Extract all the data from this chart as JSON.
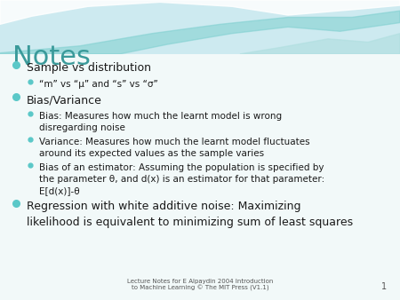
{
  "title": "Notes",
  "title_color": "#3a9a9a",
  "title_fontsize": 22,
  "background_color": "#f2f9f9",
  "footer_text": "Lecture Notes for E Alpaydin 2004 Introduction\nto Machine Learning © The MIT Press (V1.1)",
  "footer_page": "1",
  "bullet_color": "#5bc8c8",
  "text_color": "#1a1a1a",
  "items": [
    {
      "level": 1,
      "text": "Sample vs distribution"
    },
    {
      "level": 2,
      "text": "“m” vs “μ” and “s” vs “σ”"
    },
    {
      "level": 1,
      "text": "Bias/Variance"
    },
    {
      "level": 2,
      "text": "Bias: Measures how much the learnt model is wrong\ndisregarding noise"
    },
    {
      "level": 2,
      "text": "Variance: Measures how much the learnt model fluctuates\naround its expected values as the sample varies"
    },
    {
      "level": 2,
      "text": "Bias of an estimator: Assuming the population is specified by\nthe parameter θ, and d(x) is an estimator for that parameter:\nE[d(x)]-θ"
    },
    {
      "level": 1,
      "text": "Regression with white additive noise: Maximizing\nlikelihood is equivalent to minimizing sum of least squares"
    }
  ],
  "wave_bg": "#cdeaf0",
  "wave1_color": "#ffffff",
  "wave2_color": "#7dcfcf",
  "wave3_color": "#b0dfe0"
}
